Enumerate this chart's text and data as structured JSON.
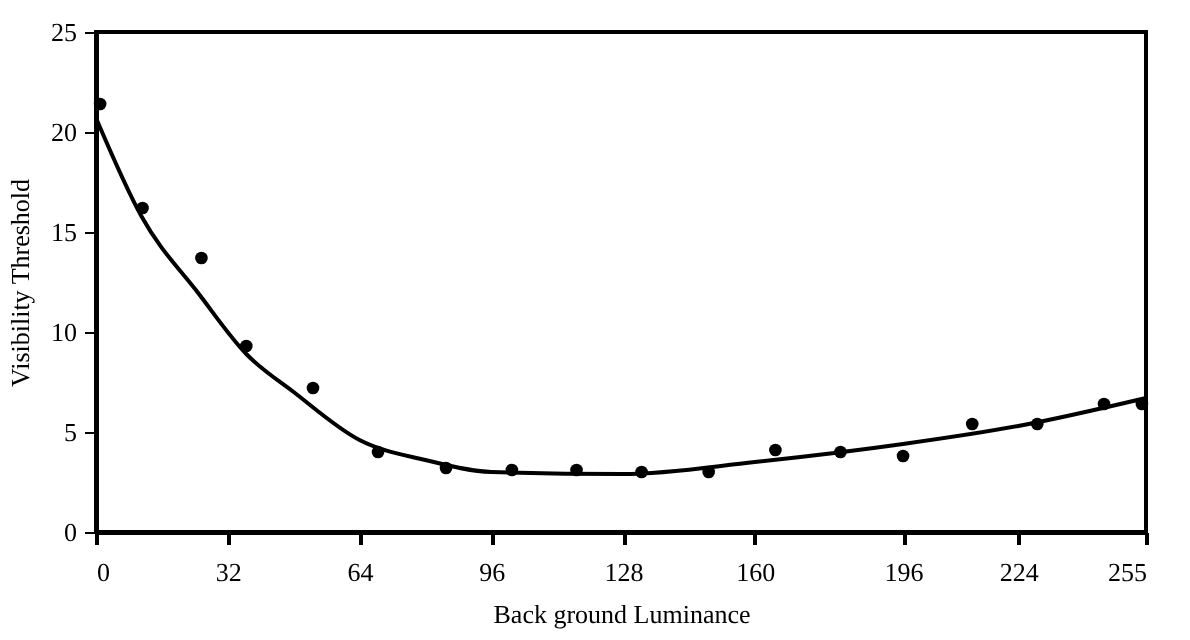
{
  "chart_data": {
    "type": "scatter",
    "xlabel": "Back ground Luminance",
    "ylabel": "Visibility Threshold",
    "xlim": [
      0,
      255
    ],
    "xticks": [
      0,
      32,
      64,
      96,
      128,
      160,
      196,
      224,
      255
    ],
    "ylim": [
      0,
      25
    ],
    "yticks": [
      0,
      5,
      10,
      15,
      20,
      25
    ],
    "grid": false,
    "marker": "circle",
    "series": [
      {
        "color": "#000000",
        "x": [
          1,
          11.3,
          25.6,
          36.5,
          52.7,
          68.5,
          85,
          101,
          116.7,
          132.5,
          148.8,
          165,
          180.8,
          196,
          212.8,
          228.6,
          244.8,
          254
        ],
        "values": [
          21.4,
          16.2,
          13.7,
          9.3,
          7.2,
          4.0,
          3.2,
          3.1,
          3.1,
          3.0,
          3.0,
          4.1,
          4.0,
          3.8,
          5.4,
          5.4,
          6.4,
          6.4
        ]
      },
      {
        "type": "line",
        "color": "#000000",
        "line_style": "solid",
        "marker": "none",
        "x": [
          0,
          11,
          25,
          36.5,
          48,
          64,
          80,
          96,
          128,
          160,
          196,
          224,
          255
        ],
        "values": [
          20.7,
          15.8,
          11.9,
          8.9,
          7.0,
          4.6,
          3.6,
          3.0,
          2.9,
          3.5,
          4.4,
          5.3,
          6.7
        ]
      }
    ]
  }
}
